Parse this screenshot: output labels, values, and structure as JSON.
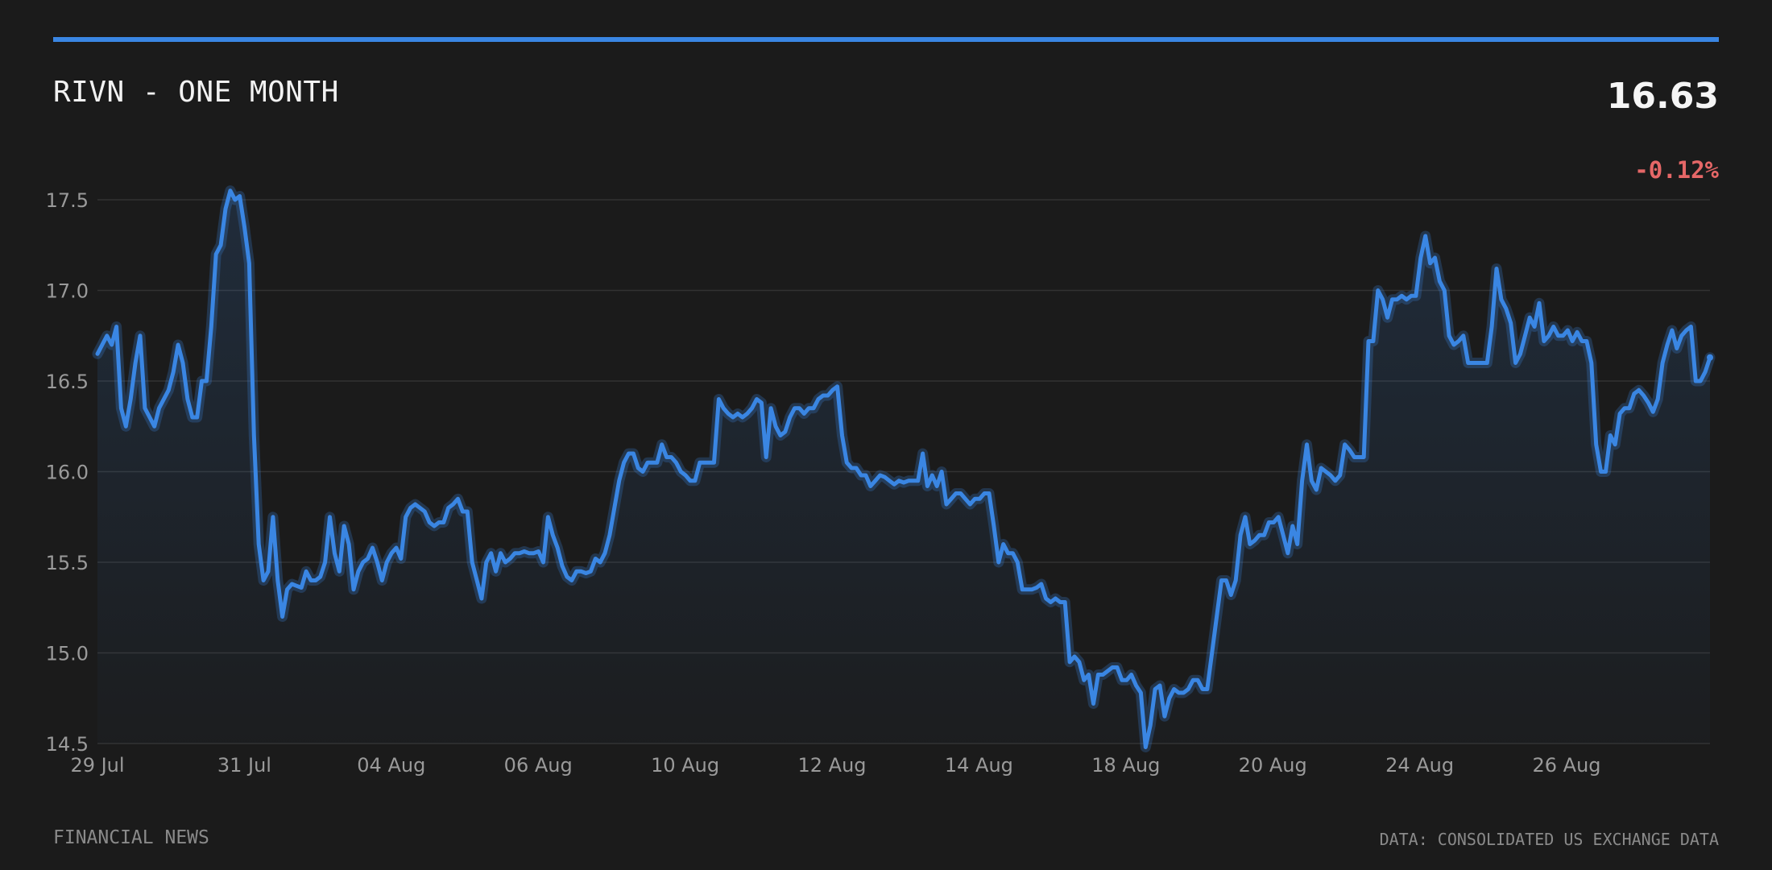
{
  "header": {
    "title": "RIVN - ONE MONTH",
    "price": "16.63",
    "change": "-0.12%"
  },
  "footer": {
    "left": "FINANCIAL NEWS",
    "right": "DATA: CONSOLIDATED US EXCHANGE DATA"
  },
  "colors": {
    "background": "#1b1b1b",
    "line": "#3a86e3",
    "negative": "#e56767",
    "grid": "#333333",
    "tick_text": "#9a9a9a"
  },
  "chart_data": {
    "type": "line",
    "title": "RIVN - ONE MONTH",
    "xlabel": "",
    "ylabel": "",
    "ylim": [
      14.5,
      17.5
    ],
    "yticks": [
      "17.5",
      "17.0",
      "16.5",
      "16.0",
      "15.5",
      "15.0",
      "14.5"
    ],
    "xticks": [
      "29 Jul",
      "31 Jul",
      "04 Aug",
      "06 Aug",
      "10 Aug",
      "12 Aug",
      "14 Aug",
      "18 Aug",
      "20 Aug",
      "24 Aug",
      "26 Aug"
    ],
    "grid": true,
    "legend": "none",
    "series": [
      {
        "values": [
          16.65,
          16.7,
          16.75,
          16.7,
          16.8,
          16.35,
          16.25,
          16.4,
          16.6,
          16.75,
          16.35,
          16.3,
          16.25,
          16.35,
          16.4,
          16.45,
          16.55,
          16.7,
          16.6,
          16.4,
          16.3,
          16.3,
          16.5,
          16.5,
          16.8,
          17.2,
          17.25,
          17.45,
          17.55,
          17.5,
          17.52,
          17.35,
          17.15,
          16.2,
          15.6,
          15.4,
          15.45,
          15.75,
          15.4,
          15.2,
          15.35,
          15.38,
          15.37,
          15.36,
          15.45,
          15.4,
          15.4,
          15.42,
          15.5,
          15.75,
          15.55,
          15.45,
          15.7,
          15.6,
          15.35,
          15.45,
          15.5,
          15.52,
          15.58,
          15.5,
          15.4,
          15.5,
          15.55,
          15.58,
          15.52,
          15.75,
          15.8,
          15.82,
          15.8,
          15.78,
          15.72,
          15.7,
          15.72,
          15.72,
          15.8,
          15.82,
          15.85,
          15.78,
          15.78,
          15.5,
          15.4,
          15.3,
          15.5,
          15.55,
          15.45,
          15.55,
          15.5,
          15.52,
          15.55,
          15.55,
          15.56,
          15.55,
          15.55,
          15.56,
          15.5,
          15.75,
          15.65,
          15.58,
          15.48,
          15.42,
          15.4,
          15.45,
          15.45,
          15.44,
          15.45,
          15.52,
          15.5,
          15.55,
          15.65,
          15.8,
          15.95,
          16.05,
          16.1,
          16.1,
          16.02,
          16.0,
          16.05,
          16.05,
          16.05,
          16.15,
          16.08,
          16.08,
          16.05,
          16.0,
          15.98,
          15.95,
          15.95,
          16.05,
          16.05,
          16.05,
          16.05,
          16.4,
          16.35,
          16.32,
          16.3,
          16.32,
          16.3,
          16.32,
          16.35,
          16.4,
          16.38,
          16.08,
          16.35,
          16.25,
          16.2,
          16.22,
          16.3,
          16.35,
          16.35,
          16.32,
          16.35,
          16.35,
          16.4,
          16.42,
          16.42,
          16.45,
          16.47,
          16.2,
          16.05,
          16.02,
          16.02,
          15.98,
          15.98,
          15.92,
          15.95,
          15.98,
          15.97,
          15.95,
          15.93,
          15.95,
          15.94,
          15.95,
          15.95,
          15.95,
          16.1,
          15.92,
          15.98,
          15.92,
          16.0,
          15.82,
          15.85,
          15.88,
          15.88,
          15.85,
          15.82,
          15.85,
          15.85,
          15.88,
          15.88,
          15.7,
          15.5,
          15.6,
          15.55,
          15.55,
          15.5,
          15.35,
          15.35,
          15.35,
          15.36,
          15.38,
          15.3,
          15.28,
          15.3,
          15.28,
          15.28,
          14.95,
          14.98,
          14.95,
          14.85,
          14.88,
          14.72,
          14.88,
          14.88,
          14.9,
          14.92,
          14.92,
          14.85,
          14.85,
          14.88,
          14.82,
          14.78,
          14.48,
          14.6,
          14.8,
          14.82,
          14.65,
          14.75,
          14.8,
          14.78,
          14.78,
          14.8,
          14.85,
          14.85,
          14.8,
          14.8,
          15.0,
          15.2,
          15.4,
          15.4,
          15.32,
          15.4,
          15.65,
          15.75,
          15.6,
          15.62,
          15.65,
          15.65,
          15.72,
          15.72,
          15.75,
          15.65,
          15.55,
          15.7,
          15.6,
          15.95,
          16.15,
          15.95,
          15.9,
          16.02,
          16.0,
          15.98,
          15.95,
          15.98,
          16.15,
          16.12,
          16.08,
          16.08,
          16.08,
          16.72,
          16.72,
          17.0,
          16.95,
          16.85,
          16.95,
          16.95,
          16.97,
          16.95,
          16.97,
          16.97,
          17.18,
          17.3,
          17.15,
          17.18,
          17.05,
          17.0,
          16.75,
          16.7,
          16.72,
          16.75,
          16.6,
          16.6,
          16.6,
          16.6,
          16.6,
          16.8,
          17.12,
          16.95,
          16.9,
          16.82,
          16.6,
          16.65,
          16.75,
          16.85,
          16.8,
          16.93,
          16.72,
          16.75,
          16.8,
          16.75,
          16.75,
          16.78,
          16.72,
          16.77,
          16.72,
          16.72,
          16.6,
          16.15,
          16.0,
          16.0,
          16.2,
          16.15,
          16.32,
          16.35,
          16.35,
          16.43,
          16.45,
          16.42,
          16.38,
          16.33,
          16.4,
          16.6,
          16.7,
          16.78,
          16.68,
          16.75,
          16.78,
          16.8,
          16.5,
          16.5,
          16.55,
          16.63
        ]
      }
    ]
  }
}
